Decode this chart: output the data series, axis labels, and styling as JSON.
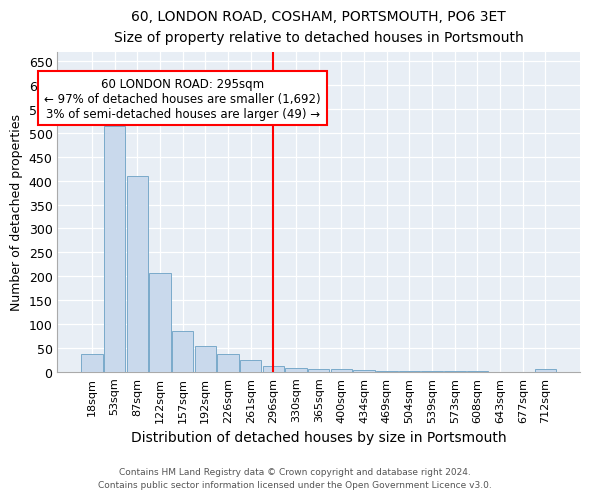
{
  "title": "60, LONDON ROAD, COSHAM, PORTSMOUTH, PO6 3ET",
  "subtitle": "Size of property relative to detached houses in Portsmouth",
  "xlabel": "Distribution of detached houses by size in Portsmouth",
  "ylabel": "Number of detached properties",
  "bar_color": "#c9d9ec",
  "bar_edge_color": "#7aaaca",
  "categories": [
    "18sqm",
    "53sqm",
    "87sqm",
    "122sqm",
    "157sqm",
    "192sqm",
    "226sqm",
    "261sqm",
    "296sqm",
    "330sqm",
    "365sqm",
    "400sqm",
    "434sqm",
    "469sqm",
    "504sqm",
    "539sqm",
    "573sqm",
    "608sqm",
    "643sqm",
    "677sqm",
    "712sqm"
  ],
  "bar_heights": [
    37,
    515,
    410,
    207,
    85,
    55,
    38,
    25,
    12,
    8,
    5,
    5,
    3,
    2,
    2,
    1,
    1,
    1,
    0,
    0,
    6
  ],
  "red_line_index": 8,
  "annotation_title": "60 LONDON ROAD: 295sqm",
  "annotation_line1": "← 97% of detached houses are smaller (1,692)",
  "annotation_line2": "3% of semi-detached houses are larger (49) →",
  "ylim": [
    0,
    670
  ],
  "yticks": [
    0,
    50,
    100,
    150,
    200,
    250,
    300,
    350,
    400,
    450,
    500,
    550,
    600,
    650
  ],
  "footnote1": "Contains HM Land Registry data © Crown copyright and database right 2024.",
  "footnote2": "Contains public sector information licensed under the Open Government Licence v3.0.",
  "background_color": "#e8eef5"
}
